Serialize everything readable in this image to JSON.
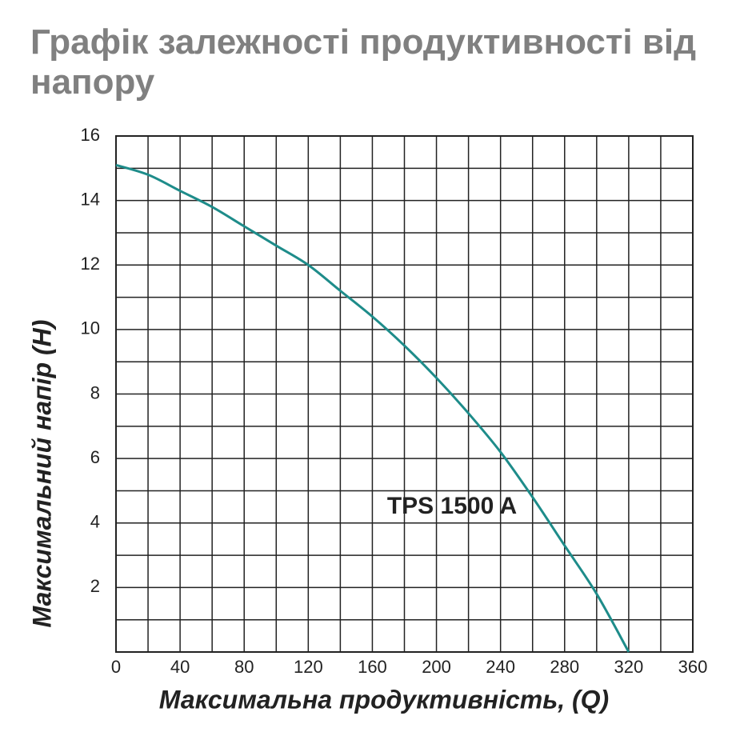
{
  "chart_data": {
    "type": "line",
    "title": "Графік залежності продуктивності від напору",
    "x_label": "Максимальна продуктивність, (Q)",
    "y_label": "Максимальний напір (H)",
    "xlim": [
      0,
      360
    ],
    "ylim": [
      0,
      16
    ],
    "xticks": [
      0,
      40,
      80,
      120,
      160,
      200,
      240,
      280,
      320,
      360
    ],
    "yticks": [
      2,
      4,
      6,
      8,
      10,
      12,
      14,
      16
    ],
    "minor_xticks": [
      20,
      60,
      100,
      140,
      180,
      220,
      260,
      300,
      340
    ],
    "minor_yticks": [
      1,
      3,
      5,
      7,
      9,
      11,
      13,
      15
    ],
    "grid": true,
    "series": [
      {
        "name": "TPS 1500 A",
        "color": "#1e8c8a",
        "x": [
          0,
          20,
          40,
          60,
          80,
          100,
          120,
          140,
          160,
          180,
          200,
          220,
          240,
          260,
          280,
          300,
          320
        ],
        "values": [
          15.1,
          14.8,
          14.3,
          13.8,
          13.2,
          12.6,
          12.0,
          11.2,
          10.4,
          9.5,
          8.5,
          7.4,
          6.2,
          4.8,
          3.3,
          1.8,
          0
        ]
      }
    ]
  }
}
